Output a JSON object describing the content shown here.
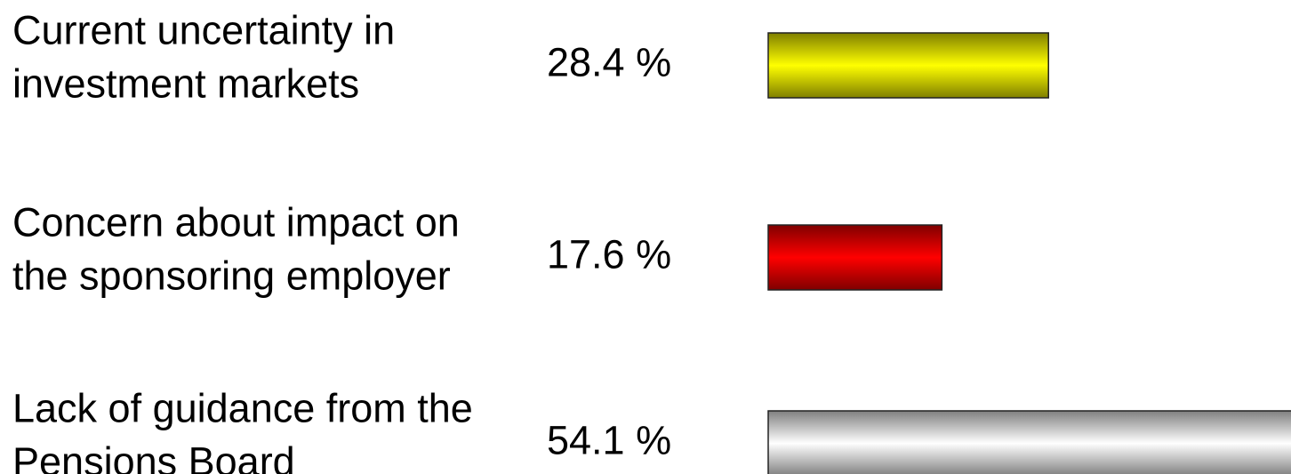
{
  "chart_data": {
    "type": "bar",
    "orientation": "horizontal",
    "categories": [
      [
        "Current uncertainty in",
        "investment markets"
      ],
      [
        "Concern about impact on",
        "the sponsoring employer"
      ],
      [
        "Lack of guidance from the",
        "Pensions Board"
      ]
    ],
    "values": [
      28.4,
      17.6,
      54.1
    ],
    "value_labels": [
      "28.4 %",
      "17.6 %",
      "54.1 %"
    ],
    "colors": [
      "#ffff00",
      "#ff0000",
      "#ffffff"
    ]
  }
}
